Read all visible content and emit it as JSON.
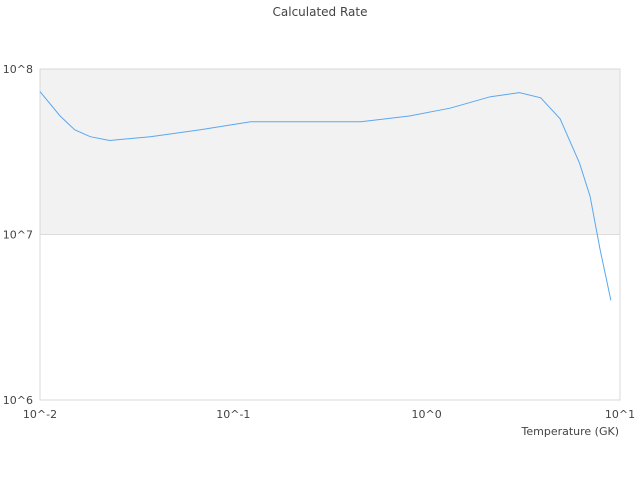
{
  "chart_data": {
    "type": "line",
    "title": "Calculated Rate",
    "xlabel": "Temperature (GK)",
    "ylabel": "",
    "x_scale": "log",
    "y_scale": "log",
    "xlim": [
      0.01,
      10
    ],
    "ylim": [
      1000000,
      100000000
    ],
    "x_ticks": [
      "10^-2",
      "10^-1",
      "10^0",
      "10^1"
    ],
    "y_ticks": [
      "10^6",
      "10^7",
      "10^8"
    ],
    "grid": true,
    "band_color": "#f2f2f2",
    "line_color": "#5aa7f0",
    "series": [
      {
        "x": [
          0.01,
          0.0127,
          0.0151,
          0.0182,
          0.0229,
          0.0372,
          0.0676,
          0.123,
          0.457,
          0.813,
          1.32,
          2.14,
          3.02,
          3.89,
          4.9,
          6.17,
          7.0,
          7.89,
          8.97
        ],
        "y": [
          73000000,
          52000000,
          43000000,
          39000000,
          37000000,
          39000000,
          43000000,
          48000000,
          48000000,
          52000000,
          58000000,
          68000000,
          72000000,
          67000000,
          50000000,
          27000000,
          17000000,
          8100000,
          4000000
        ]
      }
    ]
  }
}
